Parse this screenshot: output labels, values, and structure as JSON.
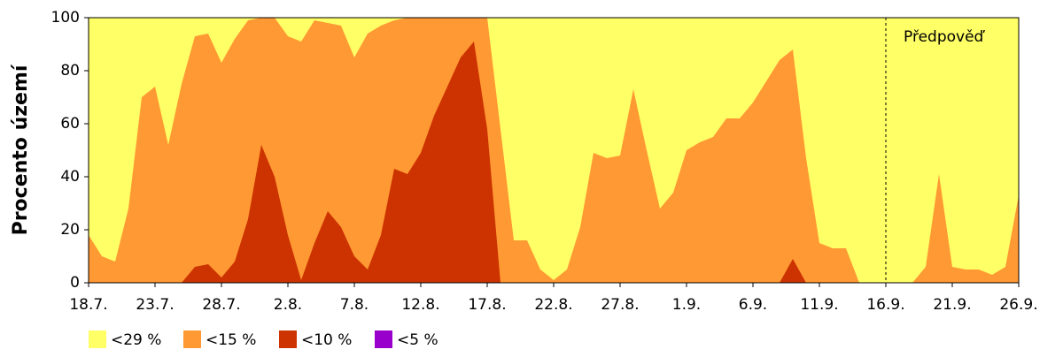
{
  "chart_data": {
    "type": "area",
    "y_label": "Procento území",
    "categories": [
      "18.7.",
      null,
      null,
      null,
      null,
      "23.7.",
      null,
      null,
      null,
      null,
      "28.7.",
      null,
      null,
      null,
      null,
      "2.8.",
      null,
      null,
      null,
      null,
      "7.8.",
      null,
      null,
      null,
      null,
      "12.8.",
      null,
      null,
      null,
      null,
      "17.8.",
      null,
      null,
      null,
      null,
      "22.8.",
      null,
      null,
      null,
      null,
      "27.8.",
      null,
      null,
      null,
      null,
      "1.9.",
      null,
      null,
      null,
      null,
      "6.9.",
      null,
      null,
      null,
      null,
      "11.9.",
      null,
      null,
      null,
      null,
      "16.9.",
      null,
      null,
      null,
      null,
      "21.9.",
      null,
      null,
      null,
      null,
      "26.9."
    ],
    "series": [
      {
        "name": "<29 %",
        "color": "#ffff66",
        "values": [
          100,
          100,
          100,
          100,
          100,
          100,
          100,
          100,
          100,
          100,
          100,
          100,
          100,
          100,
          100,
          100,
          100,
          100,
          100,
          100,
          100,
          100,
          100,
          100,
          100,
          100,
          100,
          100,
          100,
          100,
          100,
          100,
          100,
          100,
          100,
          100,
          100,
          100,
          100,
          100,
          100,
          100,
          100,
          100,
          100,
          100,
          100,
          100,
          100,
          100,
          100,
          100,
          100,
          100,
          100,
          100,
          100,
          100,
          100,
          100,
          100,
          100,
          100,
          100,
          100,
          100,
          100,
          100,
          100,
          100,
          100
        ]
      },
      {
        "name": "<15 %",
        "color": "#ff9933",
        "values": [
          18,
          10,
          8,
          28,
          70,
          74,
          52,
          75,
          93,
          94,
          83,
          92,
          99,
          100,
          100,
          93,
          91,
          99,
          98,
          97,
          85,
          94,
          97,
          99,
          100,
          100,
          100,
          100,
          100,
          100,
          100,
          58,
          16,
          16,
          5,
          1,
          5,
          21,
          49,
          47,
          48,
          73,
          50,
          28,
          34,
          50,
          53,
          55,
          62,
          62,
          68,
          76,
          84,
          88,
          47,
          15,
          13,
          13,
          0,
          0,
          0,
          0,
          0,
          6,
          41,
          6,
          5,
          5,
          3,
          6,
          33
        ]
      },
      {
        "name": "<10 %",
        "color": "#cc3300",
        "values": [
          0,
          0,
          0,
          0,
          0,
          0,
          0,
          0,
          6,
          7,
          2,
          8,
          24,
          52,
          40,
          18,
          1,
          15,
          27,
          21,
          10,
          5,
          18,
          43,
          41,
          49,
          63,
          74,
          85,
          91,
          58,
          0,
          0,
          0,
          0,
          0,
          0,
          0,
          0,
          0,
          0,
          0,
          0,
          0,
          0,
          0,
          0,
          0,
          0,
          0,
          0,
          0,
          0,
          9,
          0,
          0,
          0,
          0,
          0,
          0,
          0,
          0,
          0,
          0,
          0,
          0,
          0,
          0,
          0,
          0,
          0
        ]
      },
      {
        "name": "<5 %",
        "color": "#9900cc",
        "values": [
          0,
          0,
          0,
          0,
          0,
          0,
          0,
          0,
          0,
          0,
          0,
          0,
          0,
          0,
          0,
          0,
          0,
          0,
          0,
          0,
          0,
          0,
          0,
          0,
          0,
          0,
          0,
          0,
          0,
          0,
          0,
          0,
          0,
          0,
          0,
          0,
          0,
          0,
          0,
          0,
          0,
          0,
          0,
          0,
          0,
          0,
          0,
          0,
          0,
          0,
          0,
          0,
          0,
          0,
          0,
          0,
          0,
          0,
          0,
          0,
          0,
          0,
          0,
          0,
          0,
          0,
          0,
          0,
          0,
          0,
          0
        ]
      }
    ],
    "forecast": {
      "label": "Předpověď",
      "start_index": 60
    },
    "ylim": [
      0,
      100
    ],
    "yticks": [
      0,
      20,
      40,
      60,
      80,
      100
    ]
  }
}
